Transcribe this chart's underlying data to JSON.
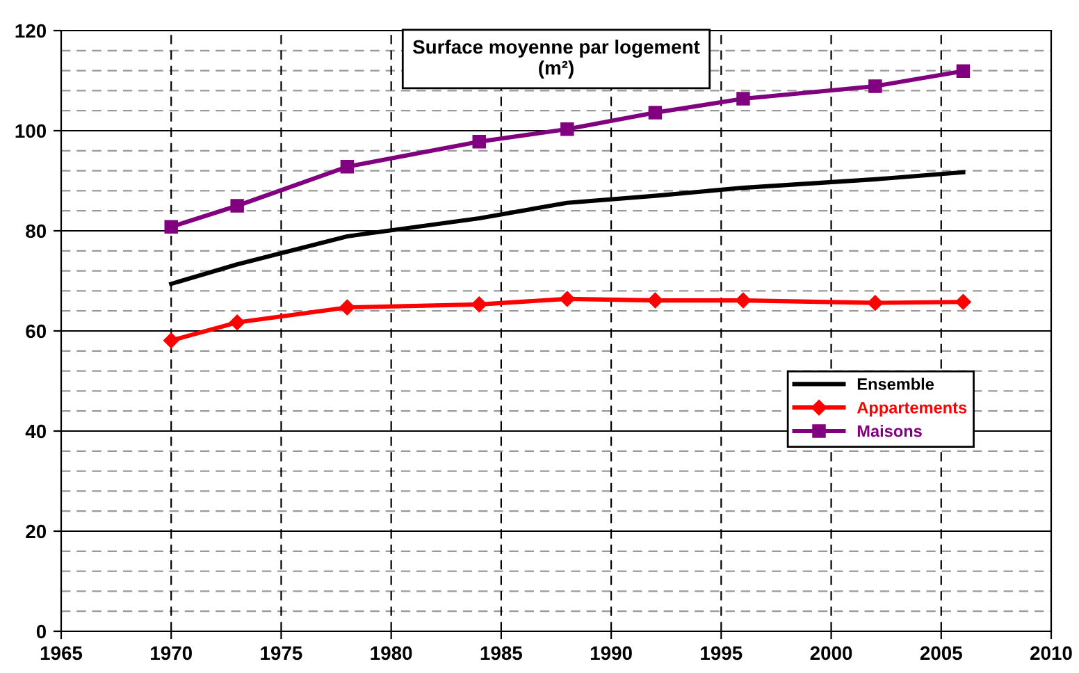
{
  "chart_data": {
    "type": "line",
    "title": "Surface moyenne par logement\n(m²)",
    "x": [
      1970,
      1973,
      1978,
      1984,
      1988,
      1992,
      1996,
      2002,
      2006
    ],
    "series": [
      {
        "name": "Ensemble",
        "color": "#000000",
        "marker": "none",
        "values": [
          69.4,
          73.3,
          78.9,
          82.5,
          85.6,
          87.0,
          88.6,
          90.3,
          91.7
        ]
      },
      {
        "name": "Appartements",
        "color": "#ff0000",
        "marker": "diamond",
        "values": [
          58.1,
          61.7,
          64.7,
          65.3,
          66.4,
          66.1,
          66.1,
          65.6,
          65.8
        ]
      },
      {
        "name": "Maisons",
        "color": "#800080",
        "marker": "square",
        "values": [
          80.8,
          85.0,
          92.8,
          97.8,
          100.3,
          103.6,
          106.4,
          108.9,
          111.9
        ]
      }
    ],
    "xlim": [
      1965,
      2010
    ],
    "xticks": [
      1965,
      1970,
      1975,
      1980,
      1985,
      1990,
      1995,
      2000,
      2005,
      2010
    ],
    "ylim": [
      0,
      120
    ],
    "yticks": [
      0,
      20,
      40,
      60,
      80,
      100,
      120
    ],
    "grid": true,
    "legend": "right"
  }
}
